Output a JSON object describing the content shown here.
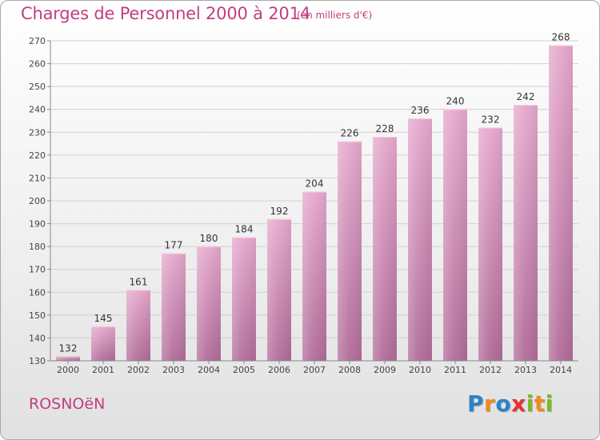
{
  "header": {
    "title": "Charges de Personnel 2000 à 2014",
    "subtitle": "(en milliers d'€)"
  },
  "footer": {
    "commune": "ROSNOëN",
    "logo_letters": [
      "P",
      "r",
      "o",
      "x",
      "i",
      "t",
      "i"
    ],
    "logo_colors": [
      "#2e83c6",
      "#f08a1c",
      "#2e83c6",
      "#e6322d",
      "#7ab929",
      "#f08a1c",
      "#7ab929"
    ]
  },
  "colors": {
    "bar_top": "#e6a8cd",
    "bar_bottom": "#b06c98",
    "grid": "#d0d0d0",
    "axis": "#888888"
  },
  "chart_data": {
    "type": "bar",
    "title": "Charges de Personnel 2000 à 2014",
    "subtitle": "(en milliers d'€)",
    "xlabel": "",
    "ylabel": "",
    "categories": [
      "2000",
      "2001",
      "2002",
      "2003",
      "2004",
      "2005",
      "2006",
      "2007",
      "2008",
      "2009",
      "2010",
      "2011",
      "2012",
      "2013",
      "2014"
    ],
    "values": [
      132,
      145,
      161,
      177,
      180,
      184,
      192,
      204,
      226,
      228,
      236,
      240,
      232,
      242,
      268
    ],
    "ylim": [
      130,
      270
    ],
    "yticks": [
      130,
      140,
      150,
      160,
      170,
      180,
      190,
      200,
      210,
      220,
      230,
      240,
      250,
      260,
      270
    ],
    "grid": true
  }
}
